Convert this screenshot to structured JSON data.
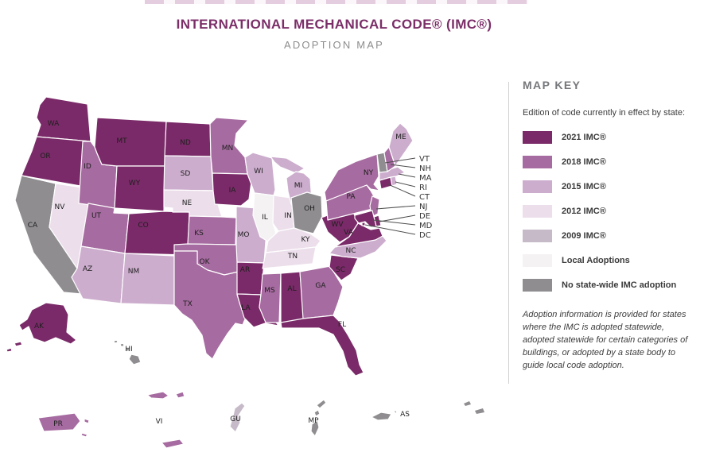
{
  "header": {
    "title": "INTERNATIONAL MECHANICAL CODE® (IMC®)",
    "subtitle": "ADOPTION MAP"
  },
  "map_key": {
    "heading": "MAP KEY",
    "description": "Edition of code currently in effect by state:",
    "entries": [
      {
        "id": "2021",
        "label": "2021 IMC®",
        "color": "#7a2a68"
      },
      {
        "id": "2018",
        "label": "2018 IMC®",
        "color": "#a66ba0"
      },
      {
        "id": "2015",
        "label": "2015 IMC®",
        "color": "#ccadcd"
      },
      {
        "id": "2012",
        "label": "2012 IMC®",
        "color": "#ecdfeb"
      },
      {
        "id": "2009",
        "label": "2009 IMC®",
        "color": "#c6bac8"
      },
      {
        "id": "local",
        "label": "Local Adoptions",
        "color": "#f4f2f3"
      },
      {
        "id": "none",
        "label": "No state-wide IMC adoption",
        "color": "#8f8d90"
      }
    ],
    "note": "Adoption information is provided for states where the IMC is adopted statewide, adopted statewide for certain categories of buildings, or adopted by a state body to guide local code adoption."
  },
  "map": {
    "callout_labels": [
      "VT",
      "NH",
      "MA",
      "RI",
      "CT",
      "NJ",
      "DE",
      "MD",
      "DC"
    ],
    "states": [
      {
        "id": "WA",
        "category": "2021"
      },
      {
        "id": "OR",
        "category": "2021"
      },
      {
        "id": "CA",
        "category": "none"
      },
      {
        "id": "NV",
        "category": "2012"
      },
      {
        "id": "ID",
        "category": "2018"
      },
      {
        "id": "MT",
        "category": "2021"
      },
      {
        "id": "WY",
        "category": "2021"
      },
      {
        "id": "UT",
        "category": "2018"
      },
      {
        "id": "AZ",
        "category": "2015"
      },
      {
        "id": "NM",
        "category": "2015"
      },
      {
        "id": "CO",
        "category": "2021"
      },
      {
        "id": "ND",
        "category": "2021"
      },
      {
        "id": "SD",
        "category": "2015"
      },
      {
        "id": "NE",
        "category": "2012"
      },
      {
        "id": "KS",
        "category": "2018"
      },
      {
        "id": "OK",
        "category": "2018"
      },
      {
        "id": "TX",
        "category": "2018"
      },
      {
        "id": "MN",
        "category": "2018"
      },
      {
        "id": "IA",
        "category": "2021"
      },
      {
        "id": "MO",
        "category": "2015"
      },
      {
        "id": "AR",
        "category": "2021"
      },
      {
        "id": "LA",
        "category": "2021"
      },
      {
        "id": "WI",
        "category": "2015"
      },
      {
        "id": "IL",
        "category": "local"
      },
      {
        "id": "IN",
        "category": "2012"
      },
      {
        "id": "MI",
        "category": "2015"
      },
      {
        "id": "OH",
        "category": "none"
      },
      {
        "id": "KY",
        "category": "2012"
      },
      {
        "id": "TN",
        "category": "2012"
      },
      {
        "id": "MS",
        "category": "2018"
      },
      {
        "id": "AL",
        "category": "2021"
      },
      {
        "id": "GA",
        "category": "2018"
      },
      {
        "id": "FL",
        "category": "2021"
      },
      {
        "id": "SC",
        "category": "2021"
      },
      {
        "id": "NC",
        "category": "2015"
      },
      {
        "id": "VA",
        "category": "2021"
      },
      {
        "id": "WV",
        "category": "2021"
      },
      {
        "id": "NY",
        "category": "2018"
      },
      {
        "id": "PA",
        "category": "2018"
      },
      {
        "id": "NJ",
        "category": "2018"
      },
      {
        "id": "CT",
        "category": "2021"
      },
      {
        "id": "RI",
        "category": "2015"
      },
      {
        "id": "MA",
        "category": "2015"
      },
      {
        "id": "VT",
        "category": "none"
      },
      {
        "id": "NH",
        "category": "2018"
      },
      {
        "id": "ME",
        "category": "2015"
      },
      {
        "id": "DE",
        "category": "2021"
      },
      {
        "id": "MD",
        "category": "2021"
      },
      {
        "id": "DC",
        "category": "2021"
      },
      {
        "id": "AK",
        "category": "2021"
      },
      {
        "id": "HI",
        "category": "none"
      },
      {
        "id": "PR",
        "category": "2018"
      },
      {
        "id": "VI",
        "category": "2018"
      },
      {
        "id": "GU",
        "category": "2009"
      },
      {
        "id": "MP",
        "category": "none"
      },
      {
        "id": "AS",
        "category": "none"
      }
    ]
  }
}
